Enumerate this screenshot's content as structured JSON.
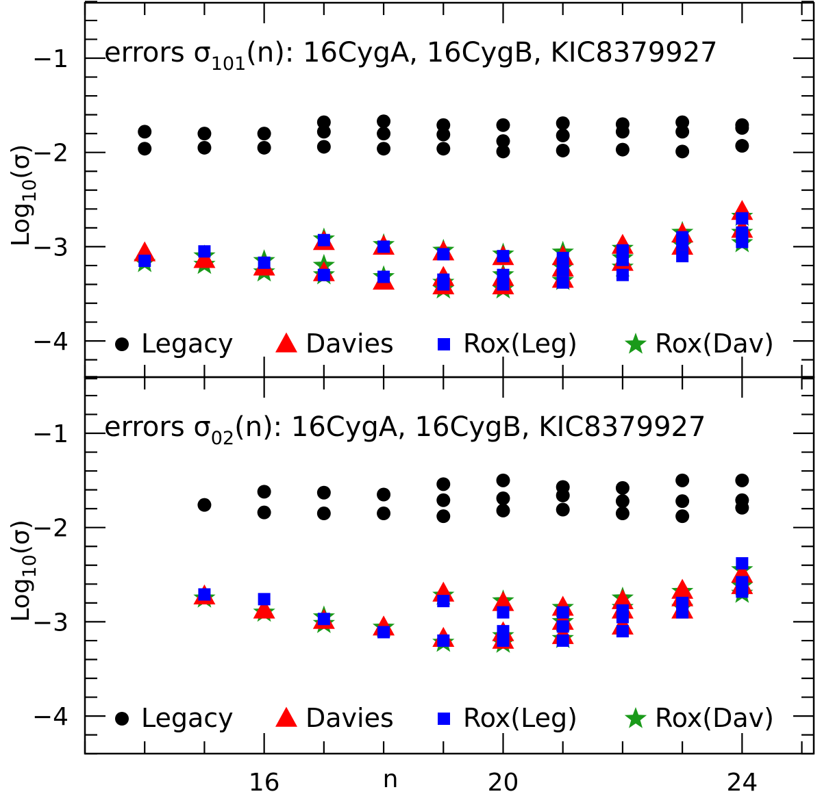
{
  "chart_data": [
    {
      "type": "scatter",
      "panel": "top",
      "title_prefix": "errors σ",
      "title_subscript": "101",
      "title_suffix": "(n): 16CygA, 16CygB, KIC8379927",
      "xlabel": "n",
      "ylabel_prefix": "Log",
      "ylabel_subscript": "10",
      "ylabel_suffix": "(σ)",
      "xlim": [
        13,
        25.2
      ],
      "ylim": [
        -4.5,
        -0.4
      ],
      "x_ticks": [
        16,
        20,
        24
      ],
      "y_ticks": [
        -1,
        -2,
        -3,
        -4
      ],
      "legend_position": "bottom",
      "series": [
        {
          "name": "Legacy",
          "marker": "circle",
          "color": "#000000",
          "points": [
            [
              14,
              -1.78
            ],
            [
              14,
              -1.96
            ],
            [
              15,
              -1.8
            ],
            [
              15,
              -1.95
            ],
            [
              16,
              -1.8
            ],
            [
              16,
              -1.95
            ],
            [
              17,
              -1.68
            ],
            [
              17,
              -1.78
            ],
            [
              17,
              -1.94
            ],
            [
              18,
              -1.67
            ],
            [
              18,
              -1.8
            ],
            [
              18,
              -1.96
            ],
            [
              19,
              -1.71
            ],
            [
              19,
              -1.81
            ],
            [
              19,
              -1.96
            ],
            [
              20,
              -1.71
            ],
            [
              20,
              -1.88
            ],
            [
              20,
              -1.99
            ],
            [
              21,
              -1.69
            ],
            [
              21,
              -1.82
            ],
            [
              21,
              -1.98
            ],
            [
              22,
              -1.7
            ],
            [
              22,
              -1.78
            ],
            [
              22,
              -1.97
            ],
            [
              23,
              -1.68
            ],
            [
              23,
              -1.78
            ],
            [
              23,
              -1.99
            ],
            [
              24,
              -1.71
            ],
            [
              24,
              -1.74
            ],
            [
              24,
              -1.93
            ]
          ]
        },
        {
          "name": "Davies",
          "marker": "triangle",
          "color": "#ff0000",
          "points": [
            [
              14,
              -3.07
            ],
            [
              15,
              -3.14
            ],
            [
              16,
              -3.22
            ],
            [
              17,
              -2.95
            ],
            [
              17,
              -3.28
            ],
            [
              18,
              -3.0
            ],
            [
              18,
              -3.37
            ],
            [
              19,
              -3.06
            ],
            [
              19,
              -3.33
            ],
            [
              19,
              -3.42
            ],
            [
              20,
              -3.11
            ],
            [
              20,
              -3.33
            ],
            [
              20,
              -3.42
            ],
            [
              21,
              -3.11
            ],
            [
              21,
              -3.23
            ],
            [
              21,
              -3.35
            ],
            [
              22,
              -2.99
            ],
            [
              22,
              -3.17
            ],
            [
              23,
              -2.87
            ],
            [
              23,
              -3.0
            ],
            [
              24,
              -2.63
            ],
            [
              24,
              -2.82
            ]
          ]
        },
        {
          "name": "Rox(Leg)",
          "marker": "square",
          "color": "#0000ff",
          "points": [
            [
              14,
              -3.15
            ],
            [
              15,
              -3.05
            ],
            [
              16,
              -3.17
            ],
            [
              17,
              -2.93
            ],
            [
              17,
              -3.3
            ],
            [
              18,
              -3.0
            ],
            [
              18,
              -3.32
            ],
            [
              19,
              -3.08
            ],
            [
              19,
              -3.35
            ],
            [
              19,
              -3.4
            ],
            [
              20,
              -3.1
            ],
            [
              20,
              -3.3
            ],
            [
              20,
              -3.4
            ],
            [
              21,
              -3.12
            ],
            [
              21,
              -3.25
            ],
            [
              21,
              -3.38
            ],
            [
              22,
              -3.04
            ],
            [
              22,
              -3.14
            ],
            [
              22,
              -3.3
            ],
            [
              23,
              -2.9
            ],
            [
              23,
              -2.97
            ],
            [
              23,
              -3.1
            ],
            [
              24,
              -2.7
            ],
            [
              24,
              -2.85
            ],
            [
              24,
              -2.95
            ]
          ]
        },
        {
          "name": "Rox(Dav)",
          "marker": "star",
          "color": "#1a9a1a",
          "points": [
            [
              14,
              -3.17
            ],
            [
              15,
              -3.1
            ],
            [
              15,
              -3.19
            ],
            [
              16,
              -3.15
            ],
            [
              16,
              -3.27
            ],
            [
              17,
              -2.92
            ],
            [
              17,
              -3.2
            ],
            [
              17,
              -3.3
            ],
            [
              18,
              -2.98
            ],
            [
              18,
              -3.32
            ],
            [
              19,
              -3.04
            ],
            [
              19,
              -3.38
            ],
            [
              19,
              -3.45
            ],
            [
              20,
              -3.08
            ],
            [
              20,
              -3.3
            ],
            [
              20,
              -3.45
            ],
            [
              21,
              -3.06
            ],
            [
              21,
              -3.22
            ],
            [
              21,
              -3.36
            ],
            [
              22,
              -3.02
            ],
            [
              22,
              -3.12
            ],
            [
              22,
              -3.22
            ],
            [
              23,
              -2.85
            ],
            [
              23,
              -2.98
            ],
            [
              24,
              -2.68
            ],
            [
              24,
              -2.85
            ],
            [
              24,
              -2.96
            ]
          ]
        }
      ]
    },
    {
      "type": "scatter",
      "panel": "bottom",
      "title_prefix": "errors σ",
      "title_subscript": "02",
      "title_suffix": "(n): 16CygA, 16CygB, KIC8379927",
      "xlabel": "n",
      "ylabel_prefix": "Log",
      "ylabel_subscript": "10",
      "ylabel_suffix": "(σ)",
      "xlim": [
        13,
        25.2
      ],
      "ylim": [
        -4.5,
        -0.4
      ],
      "x_ticks": [
        16,
        20,
        24
      ],
      "y_ticks": [
        -1,
        -2,
        -3,
        -4
      ],
      "legend_position": "bottom",
      "series": [
        {
          "name": "Legacy",
          "marker": "circle",
          "color": "#000000",
          "points": [
            [
              15,
              -1.76
            ],
            [
              16,
              -1.62
            ],
            [
              16,
              -1.84
            ],
            [
              17,
              -1.63
            ],
            [
              17,
              -1.85
            ],
            [
              18,
              -1.65
            ],
            [
              18,
              -1.85
            ],
            [
              19,
              -1.54
            ],
            [
              19,
              -1.71
            ],
            [
              19,
              -1.88
            ],
            [
              20,
              -1.5
            ],
            [
              20,
              -1.69
            ],
            [
              20,
              -1.82
            ],
            [
              21,
              -1.57
            ],
            [
              21,
              -1.66
            ],
            [
              21,
              -1.81
            ],
            [
              22,
              -1.58
            ],
            [
              22,
              -1.72
            ],
            [
              22,
              -1.85
            ],
            [
              23,
              -1.5
            ],
            [
              23,
              -1.72
            ],
            [
              23,
              -1.88
            ],
            [
              24,
              -1.5
            ],
            [
              24,
              -1.71
            ],
            [
              24,
              -1.79
            ]
          ]
        },
        {
          "name": "Davies",
          "marker": "triangle",
          "color": "#ff0000",
          "points": [
            [
              15,
              -2.73
            ],
            [
              16,
              -2.88
            ],
            [
              17,
              -2.99
            ],
            [
              18,
              -3.06
            ],
            [
              19,
              -2.7
            ],
            [
              19,
              -3.18
            ],
            [
              20,
              -2.8
            ],
            [
              20,
              -3.12
            ],
            [
              20,
              -3.2
            ],
            [
              21,
              -2.85
            ],
            [
              21,
              -3.0
            ],
            [
              21,
              -3.15
            ],
            [
              22,
              -2.78
            ],
            [
              22,
              -2.88
            ],
            [
              22,
              -3.05
            ],
            [
              23,
              -2.67
            ],
            [
              23,
              -2.75
            ],
            [
              23,
              -2.88
            ],
            [
              24,
              -2.5
            ],
            [
              24,
              -2.62
            ]
          ]
        },
        {
          "name": "Rox(Leg)",
          "marker": "square",
          "color": "#0000ff",
          "points": [
            [
              15,
              -2.71
            ],
            [
              16,
              -2.76
            ],
            [
              17,
              -2.97
            ],
            [
              18,
              -3.11
            ],
            [
              19,
              -2.78
            ],
            [
              19,
              -3.2
            ],
            [
              20,
              -2.9
            ],
            [
              20,
              -3.1
            ],
            [
              20,
              -3.2
            ],
            [
              21,
              -2.9
            ],
            [
              21,
              -3.05
            ],
            [
              21,
              -3.2
            ],
            [
              22,
              -2.88
            ],
            [
              22,
              -2.95
            ],
            [
              22,
              -3.1
            ],
            [
              23,
              -2.8
            ],
            [
              23,
              -2.9
            ],
            [
              24,
              -2.38
            ],
            [
              24,
              -2.58
            ],
            [
              24,
              -2.68
            ]
          ]
        },
        {
          "name": "Rox(Dav)",
          "marker": "star",
          "color": "#1a9a1a",
          "points": [
            [
              15,
              -2.75
            ],
            [
              16,
              -2.9
            ],
            [
              17,
              -2.95
            ],
            [
              17,
              -3.02
            ],
            [
              18,
              -3.06
            ],
            [
              19,
              -2.72
            ],
            [
              19,
              -3.22
            ],
            [
              20,
              -2.78
            ],
            [
              20,
              -3.15
            ],
            [
              20,
              -3.23
            ],
            [
              21,
              -2.85
            ],
            [
              21,
              -3.0
            ],
            [
              21,
              -3.18
            ],
            [
              22,
              -2.75
            ],
            [
              22,
              -2.85
            ],
            [
              23,
              -2.68
            ],
            [
              23,
              -2.85
            ],
            [
              24,
              -2.45
            ],
            [
              24,
              -2.62
            ],
            [
              24,
              -2.7
            ]
          ]
        }
      ]
    }
  ]
}
